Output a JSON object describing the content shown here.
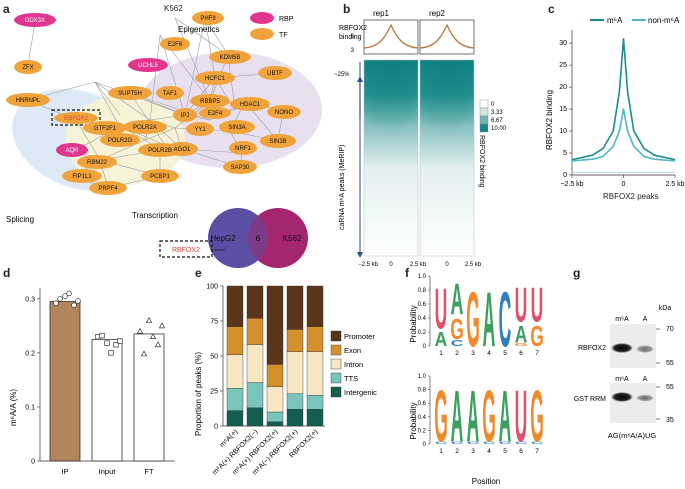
{
  "panels": {
    "a": {
      "label": "a",
      "title": "K562",
      "legend": [
        {
          "name": "RBP",
          "color": "#e2358f"
        },
        {
          "name": "TF",
          "color": "#f0a33a"
        }
      ],
      "groups": {
        "epigenetics": "Epigenetics",
        "splicing": "Splicing",
        "transcription": "Transcription"
      },
      "nodes": {
        "DDX3X": "DDX3X",
        "ZFX": "ZFX",
        "HNRNPL": "HNRNPL",
        "RBFOX2": "RBFOX2",
        "SUPT5H": "SUPT5H",
        "TAF1": "TAF1",
        "GTF2F1": "GTF2F1",
        "POLR2A": "POLR2A",
        "POLR2G": "POLR2G",
        "POLR2B": "POLR2B",
        "AQR": "AQR",
        "RBM22": "RBM22",
        "PCBP1": "PCBP1",
        "FIP1L1": "FIP1L1",
        "PRPF4": "PRPF4",
        "E2F6": "E2F6",
        "UCHL5": "UCHL5",
        "PHF8": "PHF8",
        "KDM5B": "KDM5B",
        "HCFC1": "HCFC1",
        "UBTF": "UBTF",
        "IPJ": "IPJ",
        "RBBP5": "RBBP5",
        "E2F4": "E2F4",
        "HDAC1": "HDAC1",
        "NONO": "NONO",
        "YY1": "YY1",
        "SIN3A": "SIN3A",
        "SIN3B": "SIN3B",
        "NRF1": "NRF1",
        "AGO1": "AGO1",
        "SAP30": "SAP30"
      },
      "venn": {
        "left": "HepG2",
        "right": "K562",
        "overlap": "6",
        "highlight": "RBFOX2"
      }
    },
    "b": {
      "label": "b",
      "ylabel_top": [
        "RBFOX2",
        "binding"
      ],
      "ylabel_side": "caRNA m⁶A peaks (MeRIP)",
      "col1": "rep1",
      "col2": "rep2",
      "percent": "~25%",
      "xticks": [
        "−2.5 kb",
        "0",
        "2.5 kb"
      ],
      "colorbar_title": "RBFOX2 binding",
      "colorbar_ticks": [
        "0",
        "3.33",
        "6.67",
        "10.00"
      ],
      "colorbar_colors": [
        "#ffffff",
        "#cfe5e5",
        "#6fb3b3",
        "#128787"
      ]
    },
    "c": {
      "label": "c",
      "ylabel": "RBFOX2 binding",
      "xlabel": "RBFOX2 peaks",
      "legend": [
        {
          "name": "m⁶A",
          "color": "#1a8c8c"
        },
        {
          "name": "non-m⁶A",
          "color": "#4fb7c9"
        }
      ],
      "yticks": [
        "0",
        "5",
        "10",
        "15",
        "20",
        "25",
        "30"
      ],
      "xticks": [
        "−2.5 kb",
        "0",
        "2.5 kb"
      ]
    },
    "d": {
      "label": "d",
      "ylabel": "m⁶A/A (%)",
      "yticks": [
        "0",
        "0.1",
        "0.2",
        "0.3"
      ],
      "bars": [
        {
          "name": "IP",
          "value": 0.295,
          "points": [
            0.292,
            0.305,
            0.288,
            0.3,
            0.31,
            0.296
          ],
          "color": "#b0865a"
        },
        {
          "name": "Input",
          "value": 0.225,
          "points": [
            0.23,
            0.218,
            0.215,
            0.232,
            0.2,
            0.222
          ],
          "color": "#ffffff"
        },
        {
          "name": "FT",
          "value": 0.235,
          "points": [
            0.24,
            0.26,
            0.215,
            0.198,
            0.23,
            0.25
          ],
          "color": "#ffffff"
        }
      ]
    },
    "e": {
      "label": "e",
      "ylabel": "Proportion of peaks (%)",
      "yticks": [
        "0",
        "25",
        "50",
        "75",
        "100"
      ],
      "legend": [
        {
          "name": "Promoter",
          "color": "#5a3519"
        },
        {
          "name": "Exon",
          "color": "#d4902c"
        },
        {
          "name": "Intron",
          "color": "#f7e7c3"
        },
        {
          "name": "TTS",
          "color": "#79c5bc"
        },
        {
          "name": "Intergenic",
          "color": "#135e51"
        }
      ]
    },
    "f": {
      "label": "f",
      "ylabel": "Probability",
      "xlabel": "Position",
      "yticks": [
        "0",
        "0.2",
        "0.4",
        "0.6",
        "0.8",
        "1.0"
      ],
      "positions": [
        "1",
        "2",
        "3",
        "4",
        "5",
        "6",
        "7"
      ],
      "top_motif": "UAGACUU",
      "bottom_motif": "GAAGAUG"
    },
    "g": {
      "label": "g",
      "kda_label": "kDa",
      "lane1": "m⁶A",
      "lane2": "A",
      "blot1": "RBFOX2",
      "blot2": "GST RRM",
      "markers1": [
        "70",
        "55"
      ],
      "markers2": [
        "55",
        "35"
      ],
      "caption": "AG(m⁶A/A)UG"
    }
  },
  "chart_data": [
    {
      "type": "bar",
      "title": "",
      "categories": [
        "IP",
        "Input",
        "FT"
      ],
      "values": [
        0.295,
        0.225,
        0.235
      ],
      "xlabel": "",
      "ylabel": "m⁶A/A (%)",
      "ylim": [
        0,
        0.32
      ]
    },
    {
      "type": "bar",
      "stacked": true,
      "categories": [
        "m⁶A(+)",
        "m⁶A(+) RBFOX2(−)",
        "m⁶A(+) RBFOX2(+)",
        "m⁶A(−) RBFOX2(+)",
        "RBFOX2(+)"
      ],
      "series": [
        {
          "name": "Intergenic",
          "values": [
            11,
            13,
            3,
            12,
            12
          ]
        },
        {
          "name": "TTS",
          "values": [
            16,
            18,
            7,
            11,
            10
          ]
        },
        {
          "name": "Intron",
          "values": [
            24,
            27,
            18,
            30,
            31
          ]
        },
        {
          "name": "Exon",
          "values": [
            20,
            19,
            16,
            16,
            18
          ]
        },
        {
          "name": "Promoter",
          "values": [
            29,
            23,
            56,
            31,
            29
          ]
        }
      ],
      "xlabel": "",
      "ylabel": "Proportion of peaks (%)",
      "ylim": [
        0,
        100
      ]
    },
    {
      "type": "line",
      "x": [
        -2.5,
        -1.5,
        -1.0,
        -0.5,
        -0.2,
        0,
        0.2,
        0.5,
        1.0,
        1.5,
        2.5
      ],
      "series": [
        {
          "name": "m⁶A",
          "values": [
            3.5,
            4.5,
            6,
            10,
            19,
            31,
            19,
            10,
            6,
            4.5,
            3.5
          ]
        },
        {
          "name": "non-m⁶A",
          "values": [
            3.2,
            3.6,
            4.2,
            6.5,
            10,
            15,
            10,
            6.5,
            4.2,
            3.6,
            3.2
          ]
        }
      ],
      "xlabel": "RBFOX2 peaks",
      "ylabel": "RBFOX2 binding",
      "ylim": [
        0,
        33
      ]
    }
  ]
}
